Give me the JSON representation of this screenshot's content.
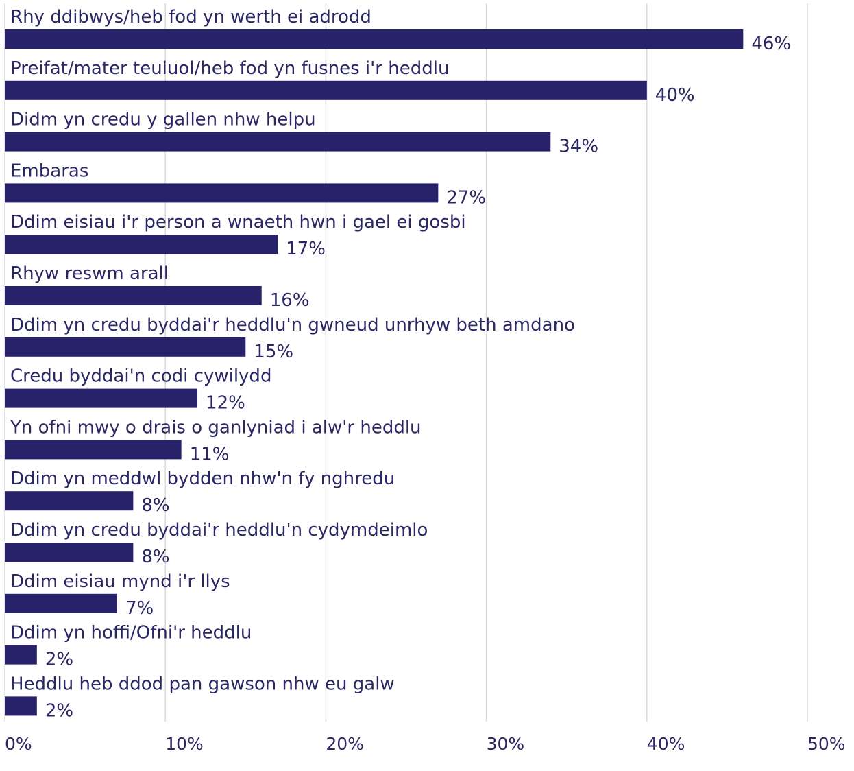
{
  "chart_data": {
    "type": "bar",
    "orientation": "horizontal",
    "categories": [
      "Rhy ddibwys/heb fod yn werth ei adrodd",
      "Preifat/mater teuluol/heb fod yn fusnes i'r heddlu",
      "Didm yn credu y gallen nhw helpu",
      "Embaras",
      "Ddim eisiau i'r person a wnaeth hwn i gael ei gosbi",
      "Rhyw reswm arall",
      "Ddim yn credu byddai'r heddlu'n gwneud unrhyw beth amdano",
      "Credu byddai'n codi cywilydd",
      "Yn ofni mwy o drais o ganlyniad i alw'r heddlu",
      "Ddim yn meddwl bydden nhw'n fy nghredu",
      "Ddim yn credu byddai'r heddlu'n cydymdeimlo",
      "Ddim eisiau mynd i'r llys",
      "Ddim yn hoffi/Ofni'r heddlu",
      "Heddlu heb ddod pan gawson nhw eu galw"
    ],
    "values": [
      46,
      40,
      34,
      27,
      17,
      16,
      15,
      12,
      11,
      8,
      8,
      7,
      2,
      2
    ],
    "value_labels": [
      "46%",
      "40%",
      "34%",
      "27%",
      "17%",
      "16%",
      "15%",
      "12%",
      "11%",
      "8%",
      "8%",
      "7%",
      "2%",
      "2%"
    ],
    "xlim": [
      0,
      50
    ],
    "xticks": [
      0,
      10,
      20,
      30,
      40,
      50
    ],
    "xtick_labels": [
      "0%",
      "10%",
      "20%",
      "30%",
      "40%",
      "50%"
    ],
    "grid": true,
    "legend": "none",
    "bar_color": "#27226a",
    "text_color": "#2b2764"
  }
}
